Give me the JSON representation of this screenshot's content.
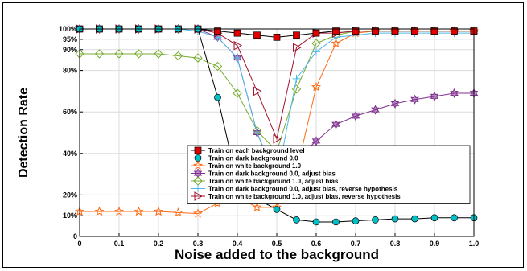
{
  "chart_data": {
    "type": "line",
    "title": "",
    "xlabel": "Noise added to the background",
    "ylabel": "Detection Rate",
    "xlim": [
      0,
      1
    ],
    "ylim": [
      0,
      100
    ],
    "grid": true,
    "legend_position": "bottom-right",
    "x": [
      0,
      0.05,
      0.1,
      0.15,
      0.2,
      0.25,
      0.3,
      0.35,
      0.4,
      0.45,
      0.5,
      0.55,
      0.6,
      0.65,
      0.7,
      0.75,
      0.8,
      0.85,
      0.9,
      0.95,
      1.0
    ],
    "x_ticks": [
      "0",
      "0.1",
      "0.2",
      "0.3",
      "0.4",
      "0.5",
      "0.6",
      "0.7",
      "0.8",
      "0.9",
      "1.0"
    ],
    "y_ticks": [
      "0",
      "10%",
      "20%",
      "40%",
      "60%",
      "80%",
      "90%",
      "95%",
      "100%"
    ],
    "series": [
      {
        "name": "Train on each background level",
        "color": "#e00000",
        "marker": "square",
        "values": [
          100,
          100,
          100,
          100,
          100,
          100,
          100,
          99,
          98,
          97,
          96,
          97,
          98,
          99,
          99,
          99,
          99,
          99,
          99,
          99,
          99
        ]
      },
      {
        "name": "Train on dark background 0.0",
        "color": "#00bfc7",
        "marker": "circle",
        "values": [
          100,
          100,
          100,
          100,
          100,
          100,
          100,
          100,
          100,
          100,
          100,
          100,
          100,
          100,
          100,
          100,
          100,
          100,
          100,
          100,
          100
        ]
      },
      {
        "name": "Train on white background 1.0",
        "color": "#ff6a13",
        "marker": "star",
        "values": [
          12,
          12,
          12,
          12,
          12,
          11.5,
          11,
          16,
          19,
          14,
          14,
          31,
          72,
          93,
          98,
          99,
          99,
          99,
          99,
          99,
          99
        ]
      },
      {
        "name": "Train on dark background 0.0, adjust bias",
        "color": "#7e2f8e",
        "marker": "hexagram",
        "values": [
          100,
          100,
          100,
          100,
          100,
          100,
          100,
          96,
          86,
          50,
          27,
          37,
          46,
          54,
          58,
          61,
          64,
          66,
          67.5,
          69,
          69
        ]
      },
      {
        "name": "Train on white background 1.0, adjust bias",
        "color": "#77ac30",
        "marker": "diamond",
        "values": [
          88,
          88,
          88,
          88,
          88,
          87,
          86,
          82,
          69,
          51,
          41,
          71,
          93,
          97,
          99,
          99,
          99,
          99,
          99,
          99,
          99
        ]
      },
      {
        "name": "Train on dark background 0.0, adjust bias, reverse hypothesis",
        "color": "#4db8ea",
        "marker": "plus",
        "values": [
          100,
          100,
          100,
          100,
          100,
          100,
          99,
          96,
          86,
          50,
          27,
          76,
          89,
          96,
          97,
          98,
          98,
          98,
          98,
          98,
          98
        ]
      },
      {
        "name": "Train on white background 1.0, adjust bias, reverse hypothesis",
        "color": "#a2142f",
        "marker": "triangle-right",
        "values": [
          100,
          100,
          100,
          100,
          100,
          100,
          100,
          98,
          92,
          70,
          47,
          91,
          98,
          98,
          99,
          99,
          99,
          99,
          99,
          99,
          99
        ]
      }
    ],
    "overlay_series_black_line": {
      "name": "Train on dark background 0.0",
      "values": [
        100,
        100,
        100,
        100,
        100,
        100,
        100,
        67,
        26,
        18,
        13,
        8,
        7,
        7,
        7.5,
        8,
        8.5,
        8.5,
        9,
        9,
        9
      ]
    }
  }
}
